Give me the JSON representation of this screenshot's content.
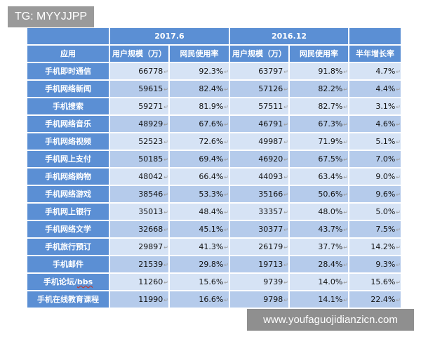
{
  "watermarks": {
    "top_left": "TG: MYYJJPP",
    "bottom_right": "www.youfaguojidianzicn.com"
  },
  "table": {
    "periods": [
      "2017.6",
      "2016.12"
    ],
    "headers": [
      "应用",
      "用户规模（万）",
      "网民使用率",
      "用户规模（万）",
      "网民使用率",
      "半年增长率"
    ],
    "rows": [
      {
        "app": "手机即时通信",
        "u2017": "66778",
        "r2017": "92.3%",
        "u2016": "63797",
        "r2016": "91.8%",
        "growth": "4.7%"
      },
      {
        "app": "手机网络新闻",
        "u2017": "59615",
        "r2017": "82.4%",
        "u2016": "57126",
        "r2016": "82.2%",
        "growth": "4.4%"
      },
      {
        "app": "手机搜索",
        "u2017": "59271",
        "r2017": "81.9%",
        "u2016": "57511",
        "r2016": "82.7%",
        "growth": "3.1%"
      },
      {
        "app": "手机网络音乐",
        "u2017": "48929",
        "r2017": "67.6%",
        "u2016": "46791",
        "r2016": "67.3%",
        "growth": "4.6%"
      },
      {
        "app": "手机网络视频",
        "u2017": "52523",
        "r2017": "72.6%",
        "u2016": "49987",
        "r2016": "71.9%",
        "growth": "5.1%"
      },
      {
        "app": "手机网上支付",
        "u2017": "50185",
        "r2017": "69.4%",
        "u2016": "46920",
        "r2016": "67.5%",
        "growth": "7.0%"
      },
      {
        "app": "手机网络购物",
        "u2017": "48042",
        "r2017": "66.4%",
        "u2016": "44093",
        "r2016": "63.4%",
        "growth": "9.0%"
      },
      {
        "app": "手机网络游戏",
        "u2017": "38546",
        "r2017": "53.3%",
        "u2016": "35166",
        "r2016": "50.6%",
        "growth": "9.6%"
      },
      {
        "app": "手机网上银行",
        "u2017": "35013",
        "r2017": "48.4%",
        "u2016": "33357",
        "r2016": "48.0%",
        "growth": "5.0%"
      },
      {
        "app": "手机网络文学",
        "u2017": "32668",
        "r2017": "45.1%",
        "u2016": "30377",
        "r2016": "43.7%",
        "growth": "7.5%"
      },
      {
        "app": "手机旅行预订",
        "u2017": "29897",
        "r2017": "41.3%",
        "u2016": "26179",
        "r2016": "37.7%",
        "growth": "14.2%"
      },
      {
        "app": "手机邮件",
        "u2017": "21539",
        "r2017": "29.8%",
        "u2016": "19713",
        "r2016": "28.4%",
        "growth": "9.3%"
      },
      {
        "app": "手机论坛/bbs",
        "u2017": "11260",
        "r2017": "15.6%",
        "u2016": "9739",
        "r2016": "14.0%",
        "growth": "15.6%"
      },
      {
        "app": "手机在线教育课程",
        "u2017": "11990",
        "r2017": "16.6%",
        "u2016": "9798",
        "r2016": "14.1%",
        "growth": "22.4%"
      }
    ]
  },
  "colors": {
    "header_blue": "#5b8fd4",
    "row_light": "#d6e3f5",
    "row_dark": "#b5cbeb"
  },
  "cell_marker": "↵"
}
